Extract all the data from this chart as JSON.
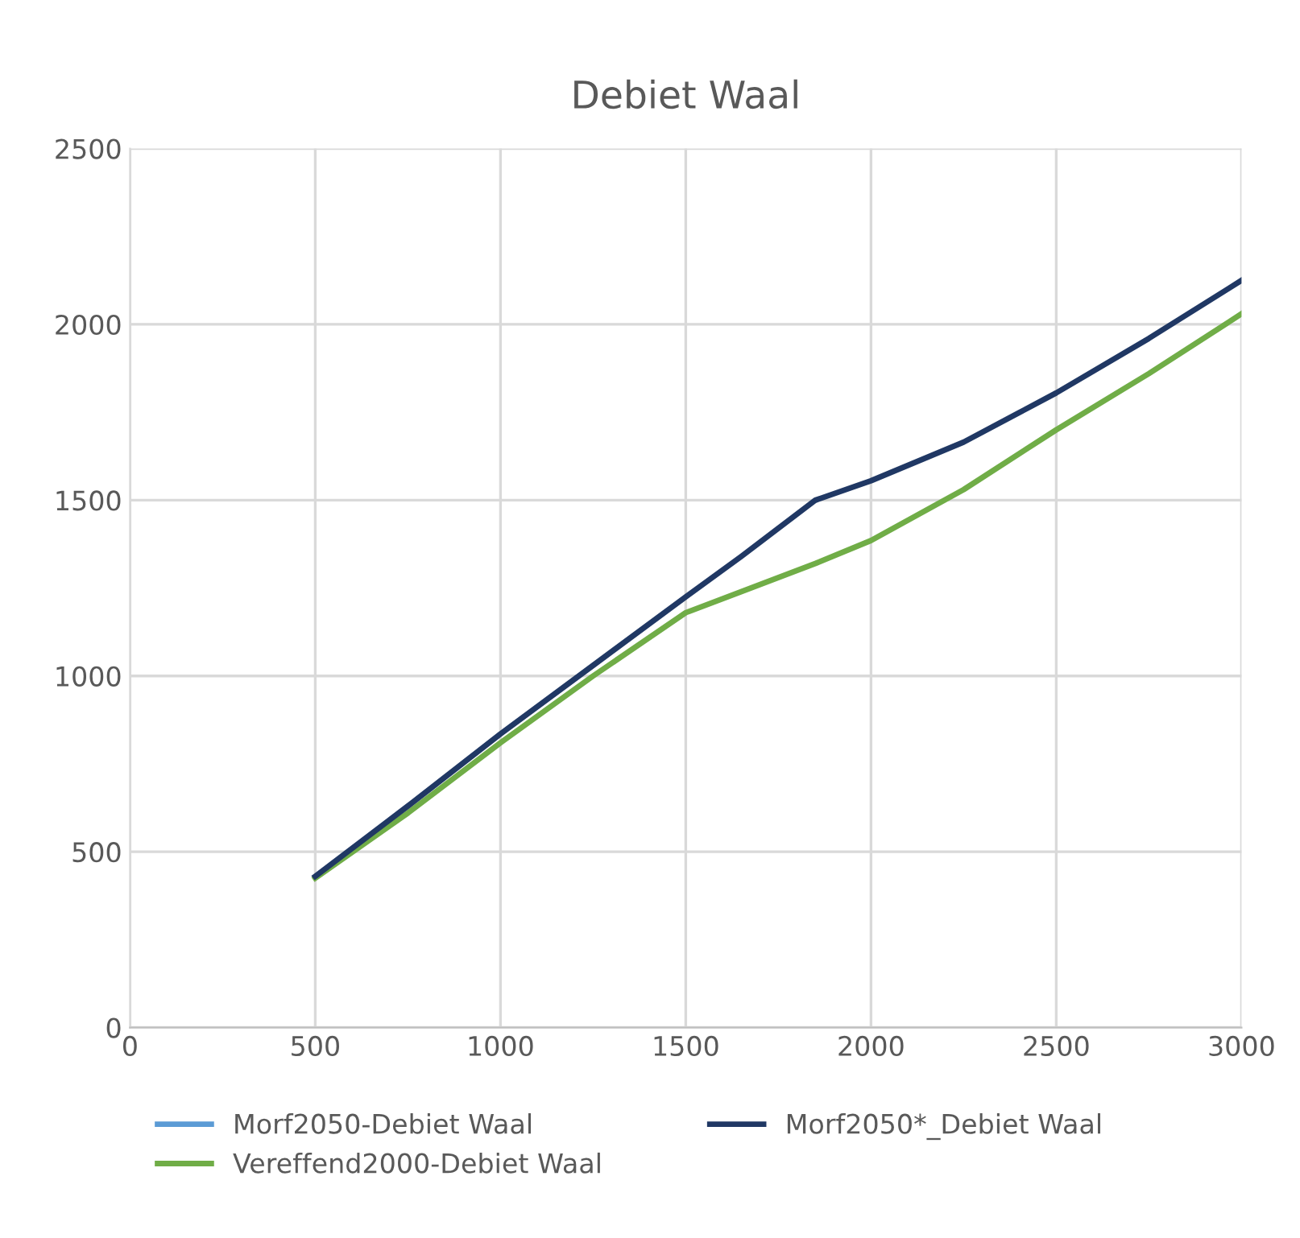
{
  "chart_data": {
    "type": "line",
    "title": "Debiet Waal",
    "x": [
      500,
      750,
      1000,
      1250,
      1500,
      1650,
      1700,
      1850,
      2000,
      2250,
      2500,
      2750,
      3000
    ],
    "series": [
      {
        "name": "Morf2050-Debiet Waal",
        "color": "#5b9bd5",
        "values": [
          null,
          null,
          null,
          null,
          null,
          null,
          null,
          null,
          null,
          null,
          null,
          null,
          null
        ]
      },
      {
        "name": "Vereffend2000-Debiet Waal",
        "color": "#70ad47",
        "values": [
          425,
          610,
          810,
          1000,
          1180,
          1240,
          1260,
          1320,
          1385,
          1530,
          1700,
          1860,
          2030
        ]
      },
      {
        "name": "Morf2050*_Debiet Waal",
        "color": "#203864",
        "values": [
          430,
          630,
          835,
          1030,
          1225,
          1340,
          1380,
          1500,
          1555,
          1665,
          1805,
          1960,
          2125
        ]
      }
    ],
    "xlim": [
      0,
      3000
    ],
    "xticks": [
      0,
      500,
      1000,
      1500,
      2000,
      2500,
      3000
    ],
    "ylim": [
      0,
      2500
    ],
    "yticks": [
      0,
      500,
      1000,
      1500,
      2000,
      2500
    ],
    "grid": true,
    "legend": "bottom"
  }
}
